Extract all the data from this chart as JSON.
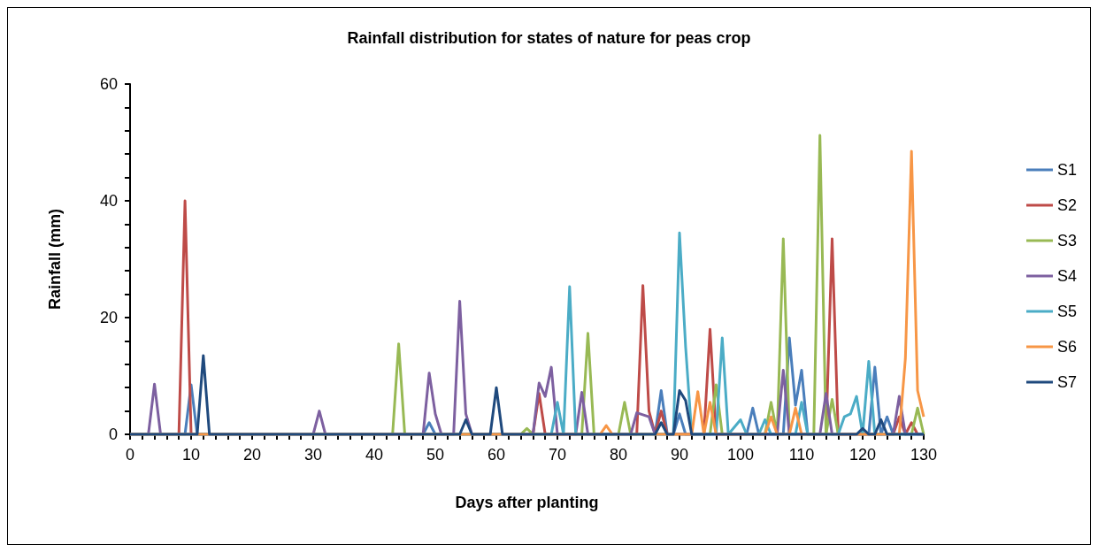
{
  "chart_data": {
    "type": "line",
    "title": "Rainfall distribution for states of nature for peas crop",
    "xlabel": "Days after planting",
    "ylabel": "Rainfall (mm)",
    "xlim": [
      0,
      130
    ],
    "ylim": [
      0,
      60
    ],
    "xticks": [
      0,
      {
        "value": 2,
        "label": null
      },
      {
        "value": 4,
        "label": null
      },
      {
        "value": 6,
        "label": null
      },
      {
        "value": 8,
        "label": null
      },
      10,
      {
        "value": 12,
        "label": null
      },
      {
        "value": 14,
        "label": null
      },
      {
        "value": 16,
        "label": null
      },
      {
        "value": 18,
        "label": null
      },
      20,
      {
        "value": 22,
        "label": null
      },
      {
        "value": 24,
        "label": null
      },
      {
        "value": 26,
        "label": null
      },
      {
        "value": 28,
        "label": null
      },
      30,
      {
        "value": 32,
        "label": null
      },
      {
        "value": 34,
        "label": null
      },
      {
        "value": 36,
        "label": null
      },
      {
        "value": 38,
        "label": null
      },
      40,
      {
        "value": 42,
        "label": null
      },
      {
        "value": 44,
        "label": null
      },
      {
        "value": 46,
        "label": null
      },
      {
        "value": 48,
        "label": null
      },
      50,
      {
        "value": 52,
        "label": null
      },
      {
        "value": 54,
        "label": null
      },
      {
        "value": 56,
        "label": null
      },
      {
        "value": 58,
        "label": null
      },
      60,
      {
        "value": 62,
        "label": null
      },
      {
        "value": 64,
        "label": null
      },
      {
        "value": 66,
        "label": null
      },
      {
        "value": 68,
        "label": null
      },
      70,
      {
        "value": 72,
        "label": null
      },
      {
        "value": 74,
        "label": null
      },
      {
        "value": 76,
        "label": null
      },
      {
        "value": 78,
        "label": null
      },
      80,
      {
        "value": 82,
        "label": null
      },
      {
        "value": 84,
        "label": null
      },
      {
        "value": 86,
        "label": null
      },
      {
        "value": 88,
        "label": null
      },
      90,
      {
        "value": 92,
        "label": null
      },
      {
        "value": 94,
        "label": null
      },
      {
        "value": 96,
        "label": null
      },
      {
        "value": 98,
        "label": null
      },
      100,
      {
        "value": 102,
        "label": null
      },
      {
        "value": 104,
        "label": null
      },
      {
        "value": 106,
        "label": null
      },
      {
        "value": 108,
        "label": null
      },
      110,
      {
        "value": 112,
        "label": null
      },
      {
        "value": 114,
        "label": null
      },
      {
        "value": 116,
        "label": null
      },
      {
        "value": 118,
        "label": null
      },
      120,
      {
        "value": 122,
        "label": null
      },
      {
        "value": 124,
        "label": null
      },
      {
        "value": 126,
        "label": null
      },
      {
        "value": 128,
        "label": null
      },
      130
    ],
    "yticks": [
      0,
      {
        "value": 4,
        "label": null
      },
      {
        "value": 8,
        "label": null
      },
      {
        "value": 12,
        "label": null
      },
      {
        "value": 16,
        "label": null
      },
      20,
      {
        "value": 24,
        "label": null
      },
      {
        "value": 28,
        "label": null
      },
      {
        "value": 32,
        "label": null
      },
      {
        "value": 36,
        "label": null
      },
      40,
      {
        "value": 44,
        "label": null
      },
      {
        "value": 48,
        "label": null
      },
      {
        "value": 52,
        "label": null
      },
      {
        "value": 56,
        "label": null
      },
      60
    ],
    "grid": false,
    "legend": "right",
    "marker": "none",
    "series": [
      {
        "name": "S1",
        "color": "#4a7ebb",
        "x": [
          0,
          9,
          10,
          11,
          48,
          49,
          50,
          86,
          87,
          88,
          89,
          90,
          91,
          101,
          102,
          103,
          107,
          108,
          109,
          110,
          111,
          121,
          122,
          123,
          124,
          125,
          130
        ],
        "values": [
          0,
          0,
          8.5,
          0,
          0,
          2,
          0,
          0,
          7.5,
          0,
          0,
          3.5,
          0,
          0,
          4.5,
          0,
          0,
          16.5,
          5,
          11,
          0,
          0,
          11.5,
          0,
          3,
          0,
          0
        ]
      },
      {
        "name": "S2",
        "color": "#be4b48",
        "x": [
          0,
          8,
          9,
          10,
          66,
          67,
          68,
          83,
          84,
          85,
          86,
          87,
          88,
          94,
          95,
          96,
          114,
          115,
          116,
          125,
          126,
          127,
          128,
          129,
          130
        ],
        "values": [
          0,
          0,
          40,
          0,
          0,
          7,
          0,
          0,
          25.5,
          4,
          0,
          4,
          0,
          0,
          18,
          0,
          0,
          33.5,
          0,
          0,
          3,
          0,
          2,
          0,
          0
        ]
      },
      {
        "name": "S3",
        "color": "#98b954",
        "x": [
          0,
          43,
          44,
          45,
          64,
          65,
          66,
          74,
          75,
          76,
          80,
          81,
          82,
          95,
          96,
          97,
          104,
          105,
          106,
          107,
          108,
          112,
          113,
          114,
          115,
          116,
          128,
          129,
          130
        ],
        "values": [
          0,
          0,
          15.5,
          0,
          0,
          1,
          0,
          0,
          17.3,
          0,
          0,
          5.5,
          0,
          0,
          8.5,
          0,
          0,
          5.5,
          0,
          33.5,
          0,
          0,
          51.2,
          0,
          6,
          0,
          0,
          4.5,
          0
        ]
      },
      {
        "name": "S4",
        "color": "#7d60a0",
        "x": [
          0,
          3,
          4,
          5,
          30,
          31,
          32,
          48,
          49,
          50,
          51,
          53,
          54,
          55,
          56,
          66,
          67,
          68,
          69,
          70,
          73,
          74,
          75,
          82,
          83,
          85,
          86,
          106,
          107,
          108,
          113,
          114,
          115,
          125,
          126,
          127,
          130
        ],
        "values": [
          0,
          0,
          8.6,
          0,
          0,
          4,
          0,
          0,
          10.5,
          3.5,
          0,
          0,
          22.8,
          3.5,
          0,
          0,
          8.8,
          6.5,
          11.5,
          0,
          0,
          7.2,
          0,
          0,
          3.7,
          3,
          0,
          0,
          11,
          0,
          0,
          7,
          0,
          0,
          6.5,
          0,
          0
        ]
      },
      {
        "name": "S5",
        "color": "#4bacc6",
        "x": [
          0,
          69,
          70,
          71,
          72,
          73,
          89,
          90,
          91,
          92,
          96,
          97,
          98,
          100,
          101,
          103,
          104,
          105,
          109,
          110,
          111,
          116,
          117,
          118,
          119,
          120,
          121,
          122,
          130
        ],
        "values": [
          0,
          0,
          5.5,
          0,
          25.3,
          0,
          0,
          34.5,
          15,
          0,
          0,
          16.5,
          0,
          2.5,
          0,
          0,
          2.5,
          0,
          0,
          5.5,
          0,
          0,
          3,
          3.5,
          6.5,
          0,
          12.5,
          0,
          0
        ]
      },
      {
        "name": "S6",
        "color": "#f79646",
        "x": [
          0,
          77,
          78,
          79,
          92,
          93,
          94,
          95,
          96,
          104,
          105,
          106,
          108,
          109,
          110,
          126,
          127,
          128,
          129,
          130
        ],
        "values": [
          0,
          0,
          1.5,
          0,
          0,
          7.3,
          0,
          5.5,
          0,
          0,
          3,
          0,
          0,
          4.5,
          0,
          0,
          13,
          48.5,
          7.5,
          3
        ]
      },
      {
        "name": "S7",
        "color": "#1f497d",
        "x": [
          0,
          11,
          12,
          13,
          54,
          55,
          56,
          59,
          60,
          61,
          86,
          87,
          88,
          89,
          90,
          91,
          92,
          119,
          120,
          121,
          122,
          123,
          124,
          130
        ],
        "values": [
          0,
          0,
          13.5,
          0,
          0,
          2.5,
          0,
          0,
          8,
          0,
          0,
          2,
          0,
          0,
          7.5,
          5.8,
          0,
          0,
          1,
          0,
          0,
          2.5,
          0,
          0
        ]
      }
    ]
  }
}
